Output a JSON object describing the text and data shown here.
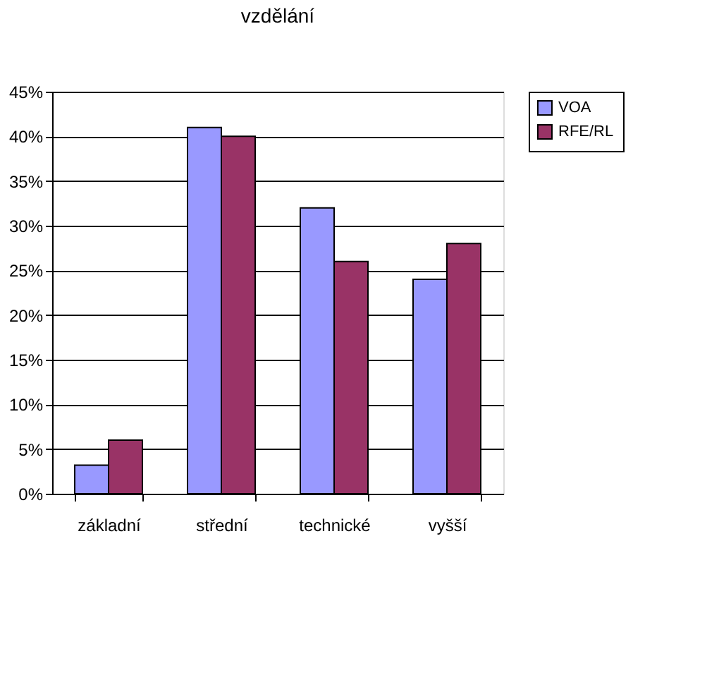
{
  "chart_data": {
    "type": "bar",
    "title": "vzdělání",
    "categories": [
      "základní",
      "střední",
      "technické",
      "vyšší"
    ],
    "series": [
      {
        "name": "VOA",
        "color": "#9999ff",
        "values": [
          3.2,
          41,
          32,
          24
        ]
      },
      {
        "name": "RFE/RL",
        "color": "#993366",
        "values": [
          6,
          40,
          26,
          28
        ]
      }
    ],
    "ylim": [
      0,
      45
    ],
    "yticks": [
      {
        "value": 0,
        "label": "0%"
      },
      {
        "value": 5,
        "label": "5%"
      },
      {
        "value": 10,
        "label": "10%"
      },
      {
        "value": 15,
        "label": "15%"
      },
      {
        "value": 20,
        "label": "20%"
      },
      {
        "value": 25,
        "label": "25%"
      },
      {
        "value": 30,
        "label": "30%"
      },
      {
        "value": 35,
        "label": "35%"
      },
      {
        "value": 40,
        "label": "40%"
      },
      {
        "value": 45,
        "label": "45%"
      }
    ],
    "grid": "y",
    "legend": "right"
  }
}
